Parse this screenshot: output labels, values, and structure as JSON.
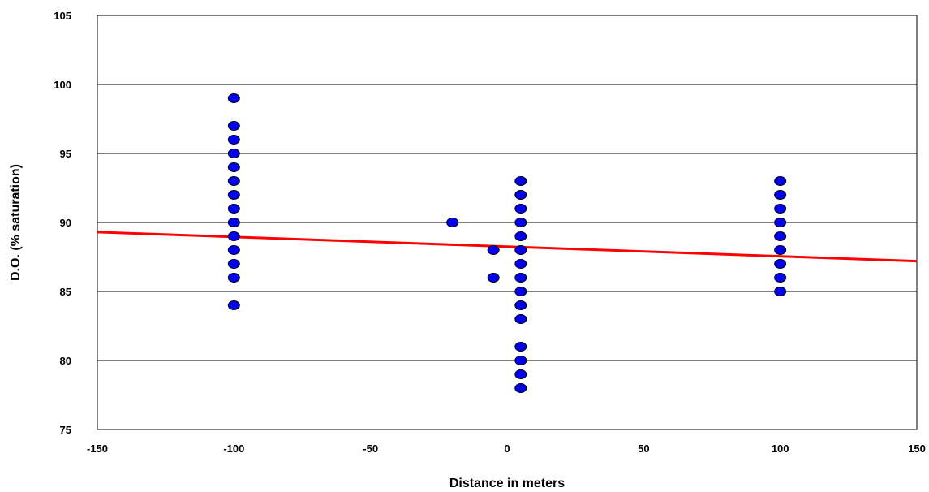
{
  "chart_data": {
    "type": "scatter",
    "xlabel": "Distance in meters",
    "ylabel": "D.O. (% saturation)",
    "xlim": [
      -150,
      150
    ],
    "ylim": [
      75,
      105
    ],
    "x_ticks": [
      -150,
      -100,
      -50,
      0,
      50,
      100,
      150
    ],
    "y_ticks": [
      75,
      80,
      85,
      90,
      95,
      100,
      105
    ],
    "grid": "horizontal",
    "series": [
      {
        "kind": "points",
        "color": "#0000ee",
        "points": [
          [
            -100,
            99
          ],
          [
            -100,
            97
          ],
          [
            -100,
            96
          ],
          [
            -100,
            95
          ],
          [
            -100,
            94
          ],
          [
            -100,
            93
          ],
          [
            -100,
            92
          ],
          [
            -100,
            91
          ],
          [
            -100,
            90
          ],
          [
            -100,
            89
          ],
          [
            -100,
            88
          ],
          [
            -100,
            87
          ],
          [
            -100,
            86
          ],
          [
            -100,
            84
          ],
          [
            -20,
            90
          ],
          [
            -5,
            88
          ],
          [
            -5,
            86
          ],
          [
            5,
            93
          ],
          [
            5,
            92
          ],
          [
            5,
            91
          ],
          [
            5,
            90
          ],
          [
            5,
            89
          ],
          [
            5,
            88
          ],
          [
            5,
            87
          ],
          [
            5,
            86
          ],
          [
            5,
            85
          ],
          [
            5,
            84
          ],
          [
            5,
            83
          ],
          [
            5,
            81
          ],
          [
            5,
            80
          ],
          [
            5,
            79
          ],
          [
            5,
            78
          ],
          [
            100,
            93
          ],
          [
            100,
            92
          ],
          [
            100,
            91
          ],
          [
            100,
            90
          ],
          [
            100,
            89
          ],
          [
            100,
            88
          ],
          [
            100,
            87
          ],
          [
            100,
            86
          ],
          [
            100,
            85
          ]
        ]
      },
      {
        "kind": "trend-line",
        "color": "#ff0000",
        "points": [
          [
            -150,
            89.3
          ],
          [
            150,
            87.2
          ]
        ]
      }
    ]
  }
}
